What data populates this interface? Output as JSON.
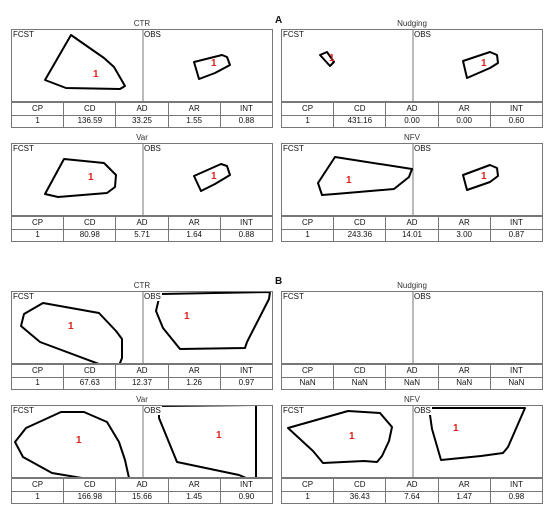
{
  "sections": [
    "A",
    "B"
  ],
  "headers": [
    "CP",
    "CD",
    "AD",
    "AR",
    "INT"
  ],
  "fcst_label": "FCST",
  "obs_label": "OBS",
  "panels": [
    {
      "title": "CTR",
      "values": [
        "1",
        "136.59",
        "33.25",
        "1.55",
        "0.88"
      ],
      "fcst_id": "1",
      "obs_id": "1"
    },
    {
      "title": "Nudging",
      "values": [
        "1",
        "431.16",
        "0.00",
        "0.00",
        "0.60"
      ],
      "fcst_id": "1",
      "obs_id": "1"
    },
    {
      "title": "Var",
      "values": [
        "1",
        "80.98",
        "5.71",
        "1.64",
        "0.88"
      ],
      "fcst_id": "1",
      "obs_id": "1"
    },
    {
      "title": "NFV",
      "values": [
        "1",
        "243.36",
        "14.01",
        "3.00",
        "0.87"
      ],
      "fcst_id": "1",
      "obs_id": "1"
    },
    {
      "title": "CTR",
      "values": [
        "1",
        "67.63",
        "12.37",
        "1.26",
        "0.97"
      ],
      "fcst_id": "1",
      "obs_id": "1"
    },
    {
      "title": "Nudging",
      "values": [
        "NaN",
        "NaN",
        "NaN",
        "NaN",
        "NaN"
      ],
      "fcst_id": "",
      "obs_id": ""
    },
    {
      "title": "Var",
      "values": [
        "1",
        "166.98",
        "15.66",
        "1.45",
        "0.90"
      ],
      "fcst_id": "1",
      "obs_id": "1"
    },
    {
      "title": "NFV",
      "values": [
        "1",
        "36.43",
        "7.64",
        "1.47",
        "0.98"
      ],
      "fcst_id": "1",
      "obs_id": "1"
    }
  ],
  "colors": {
    "object_label": "#e0201b",
    "outline": "#000000",
    "frame": "#777777"
  }
}
